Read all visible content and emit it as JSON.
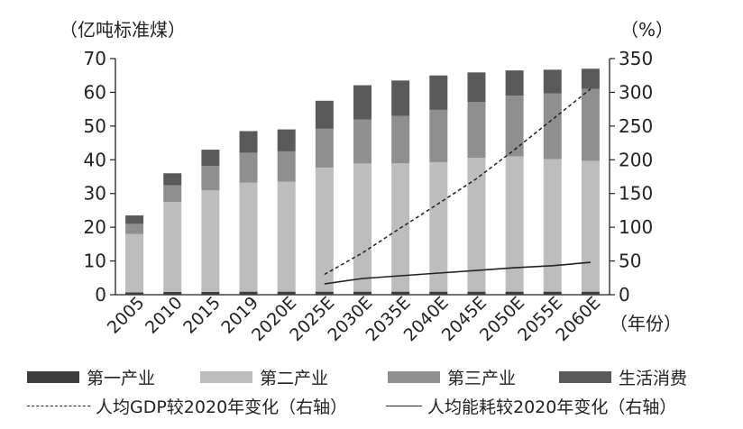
{
  "chart_data": {
    "type": "bar",
    "stacked": true,
    "categories": [
      "2005",
      "2010",
      "2015",
      "2019",
      "2020E",
      "2025E",
      "2030E",
      "2035E",
      "2040E",
      "2045E",
      "2050E",
      "2055E",
      "2060E"
    ],
    "series": [
      {
        "name": "第一产业",
        "axis": "left",
        "color": "#3d3d3d",
        "values": [
          0.7,
          0.8,
          0.8,
          0.9,
          0.9,
          0.9,
          0.9,
          0.9,
          0.9,
          0.9,
          0.9,
          0.9,
          0.9
        ]
      },
      {
        "name": "第二产业",
        "axis": "left",
        "color": "#bdbdbd",
        "values": [
          17.3,
          26.7,
          30.2,
          32.3,
          32.6,
          36.8,
          38.0,
          38.1,
          38.4,
          39.7,
          40.1,
          39.3,
          38.8
        ]
      },
      {
        "name": "第三产业",
        "axis": "left",
        "color": "#8f8f8f",
        "values": [
          3.0,
          4.9,
          7.2,
          8.9,
          9.0,
          11.5,
          13.0,
          14.0,
          15.5,
          16.5,
          18.0,
          19.5,
          21.3
        ]
      },
      {
        "name": "生活消费",
        "axis": "left",
        "color": "#5a5a5a",
        "values": [
          2.5,
          3.6,
          4.8,
          6.4,
          6.5,
          8.3,
          10.2,
          10.5,
          10.2,
          8.8,
          7.5,
          7.0,
          6.0
        ]
      }
    ],
    "lines": [
      {
        "name": "人均GDP较2020年变化（右轴）",
        "axis": "right",
        "style": "dashed",
        "x": [
          "2025E",
          "2030E",
          "2035E",
          "2040E",
          "2045E",
          "2050E",
          "2055E",
          "2060E"
        ],
        "values": [
          30,
          62,
          99,
          135,
          172,
          215,
          260,
          305
        ]
      },
      {
        "name": "人均能耗较2020年变化（右轴）",
        "axis": "right",
        "style": "solid",
        "x": [
          "2025E",
          "2030E",
          "2035E",
          "2040E",
          "2045E",
          "2050E",
          "2055E",
          "2060E"
        ],
        "values": [
          16,
          24,
          28,
          32,
          36,
          40,
          43,
          48
        ]
      }
    ],
    "left_axis": {
      "label": "（亿吨标准煤）",
      "min": 0,
      "max": 70,
      "ticks": [
        0,
        10,
        20,
        30,
        40,
        50,
        60,
        70
      ]
    },
    "right_axis": {
      "label": "（%）",
      "min": 0,
      "max": 350,
      "ticks": [
        0,
        50,
        100,
        150,
        200,
        250,
        300,
        350
      ]
    },
    "xlabel": "（年份）",
    "grid": false,
    "legend_position": "bottom"
  }
}
